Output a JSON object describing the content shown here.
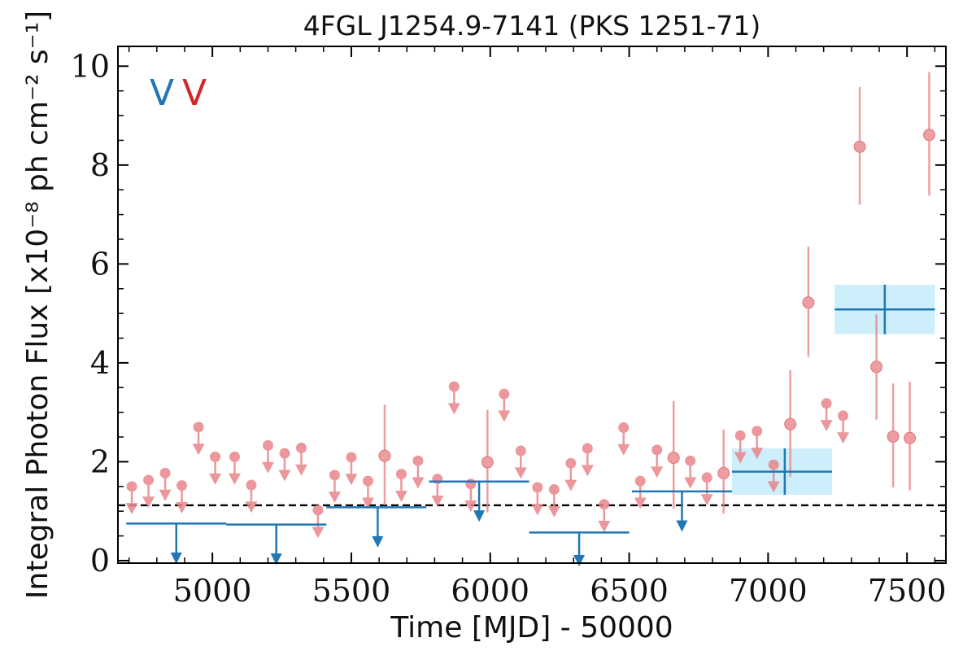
{
  "chart_data": {
    "type": "scatter",
    "title": "4FGL J1254.9-7141 (PKS 1251-71)",
    "xlabel": "Time [MJD] - 50000",
    "ylabel": "Integral Photon Flux [x10⁻⁸ ph cm⁻² s⁻¹]",
    "xlim": [
      4660,
      7640
    ],
    "ylim": [
      -0.05,
      10.4
    ],
    "xticks": [
      5000,
      5500,
      6000,
      6500,
      7000,
      7500
    ],
    "yticks": [
      0,
      2,
      4,
      6,
      8,
      10
    ],
    "reference_line": 1.12,
    "legend_position": "top-left",
    "legend": [
      {
        "label": "V",
        "color": "#1f77b4"
      },
      {
        "label": "V",
        "color": "#d62728"
      }
    ],
    "series": [
      {
        "kind": "coarse",
        "color": "#1f77b4",
        "upper_limits": [
          {
            "x": 4870,
            "x0": 4690,
            "x1": 5050,
            "y": 0.75
          },
          {
            "x": 5230,
            "x0": 5050,
            "x1": 5410,
            "y": 0.73
          },
          {
            "x": 5595,
            "x0": 5410,
            "x1": 5770,
            "y": 1.08
          },
          {
            "x": 5960,
            "x0": 5780,
            "x1": 6140,
            "y": 1.6
          },
          {
            "x": 6320,
            "x0": 6140,
            "x1": 6500,
            "y": 0.57
          },
          {
            "x": 6690,
            "x0": 6510,
            "x1": 6870,
            "y": 1.4
          }
        ],
        "detections": [
          {
            "x": 7060,
            "x0": 6870,
            "x1": 7230,
            "y": 1.8,
            "ylo": 1.33,
            "yhi": 2.27
          },
          {
            "x": 7420,
            "x0": 7240,
            "x1": 7600,
            "y": 5.08,
            "ylo": 4.58,
            "yhi": 5.58
          }
        ]
      },
      {
        "kind": "fine",
        "color": "#e8868a",
        "upper_limits": [
          {
            "x": 4710,
            "y": 1.5
          },
          {
            "x": 4770,
            "y": 1.63
          },
          {
            "x": 4830,
            "y": 1.77
          },
          {
            "x": 4890,
            "y": 1.52
          },
          {
            "x": 4950,
            "y": 2.7
          },
          {
            "x": 5010,
            "y": 2.1
          },
          {
            "x": 5080,
            "y": 2.1
          },
          {
            "x": 5140,
            "y": 1.53
          },
          {
            "x": 5200,
            "y": 2.33
          },
          {
            "x": 5260,
            "y": 2.17
          },
          {
            "x": 5320,
            "y": 2.28
          },
          {
            "x": 5380,
            "y": 1.02
          },
          {
            "x": 5440,
            "y": 1.73
          },
          {
            "x": 5500,
            "y": 2.09
          },
          {
            "x": 5560,
            "y": 1.61
          },
          {
            "x": 5680,
            "y": 1.75
          },
          {
            "x": 5740,
            "y": 2.02
          },
          {
            "x": 5810,
            "y": 1.65
          },
          {
            "x": 5870,
            "y": 3.52
          },
          {
            "x": 5930,
            "y": 1.55
          },
          {
            "x": 6050,
            "y": 3.37
          },
          {
            "x": 6110,
            "y": 2.22
          },
          {
            "x": 6170,
            "y": 1.48
          },
          {
            "x": 6230,
            "y": 1.44
          },
          {
            "x": 6290,
            "y": 1.97
          },
          {
            "x": 6350,
            "y": 2.27
          },
          {
            "x": 6410,
            "y": 1.14
          },
          {
            "x": 6480,
            "y": 2.69
          },
          {
            "x": 6540,
            "y": 1.61
          },
          {
            "x": 6600,
            "y": 2.24
          },
          {
            "x": 6720,
            "y": 2.02
          },
          {
            "x": 6780,
            "y": 1.68
          },
          {
            "x": 6900,
            "y": 2.53
          },
          {
            "x": 6960,
            "y": 2.62
          },
          {
            "x": 7020,
            "y": 1.94
          },
          {
            "x": 7210,
            "y": 3.18
          },
          {
            "x": 7270,
            "y": 2.93
          }
        ],
        "detections": [
          {
            "x": 5620,
            "y": 2.12,
            "ylo": 1.12,
            "yhi": 3.15
          },
          {
            "x": 5990,
            "y": 1.99,
            "ylo": 0.98,
            "yhi": 3.05
          },
          {
            "x": 6660,
            "y": 2.08,
            "ylo": 1.05,
            "yhi": 3.23
          },
          {
            "x": 6840,
            "y": 1.77,
            "ylo": 0.95,
            "yhi": 2.65
          },
          {
            "x": 7080,
            "y": 2.76,
            "ylo": 1.7,
            "yhi": 3.85
          },
          {
            "x": 7145,
            "y": 5.22,
            "ylo": 4.12,
            "yhi": 6.35
          },
          {
            "x": 7330,
            "y": 8.37,
            "ylo": 7.2,
            "yhi": 9.58
          },
          {
            "x": 7390,
            "y": 3.92,
            "ylo": 2.85,
            "yhi": 4.98
          },
          {
            "x": 7450,
            "y": 2.51,
            "ylo": 1.48,
            "yhi": 3.58
          },
          {
            "x": 7510,
            "y": 2.48,
            "ylo": 1.42,
            "yhi": 3.62
          },
          {
            "x": 7580,
            "y": 8.61,
            "ylo": 7.38,
            "yhi": 9.88
          }
        ]
      }
    ]
  }
}
